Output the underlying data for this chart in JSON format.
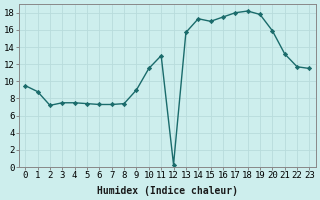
{
  "x": [
    0,
    1,
    2,
    3,
    4,
    5,
    6,
    7,
    8,
    9,
    10,
    11,
    12,
    13,
    14,
    15,
    16,
    17,
    18,
    19,
    20,
    21,
    22,
    23
  ],
  "y": [
    9.5,
    8.8,
    7.2,
    7.5,
    7.5,
    7.4,
    7.3,
    7.3,
    7.4,
    9.0,
    11.5,
    13.0,
    0.3,
    15.7,
    17.3,
    17.0,
    17.5,
    18.0,
    18.2,
    17.8,
    15.9,
    13.2,
    11.7,
    11.5
  ],
  "line_color": "#1a6b6b",
  "marker": "D",
  "markersize": 2.2,
  "linewidth": 1.0,
  "xlabel": "Humidex (Indice chaleur)",
  "xlim": [
    -0.5,
    23.5
  ],
  "ylim": [
    0,
    19
  ],
  "xticks": [
    0,
    1,
    2,
    3,
    4,
    5,
    6,
    7,
    8,
    9,
    10,
    11,
    12,
    13,
    14,
    15,
    16,
    17,
    18,
    19,
    20,
    21,
    22,
    23
  ],
  "yticks": [
    0,
    2,
    4,
    6,
    8,
    10,
    12,
    14,
    16,
    18
  ],
  "background_color": "#cdeeed",
  "grid_color": "#b8dcdc",
  "xlabel_fontsize": 7,
  "tick_fontsize": 6.5
}
